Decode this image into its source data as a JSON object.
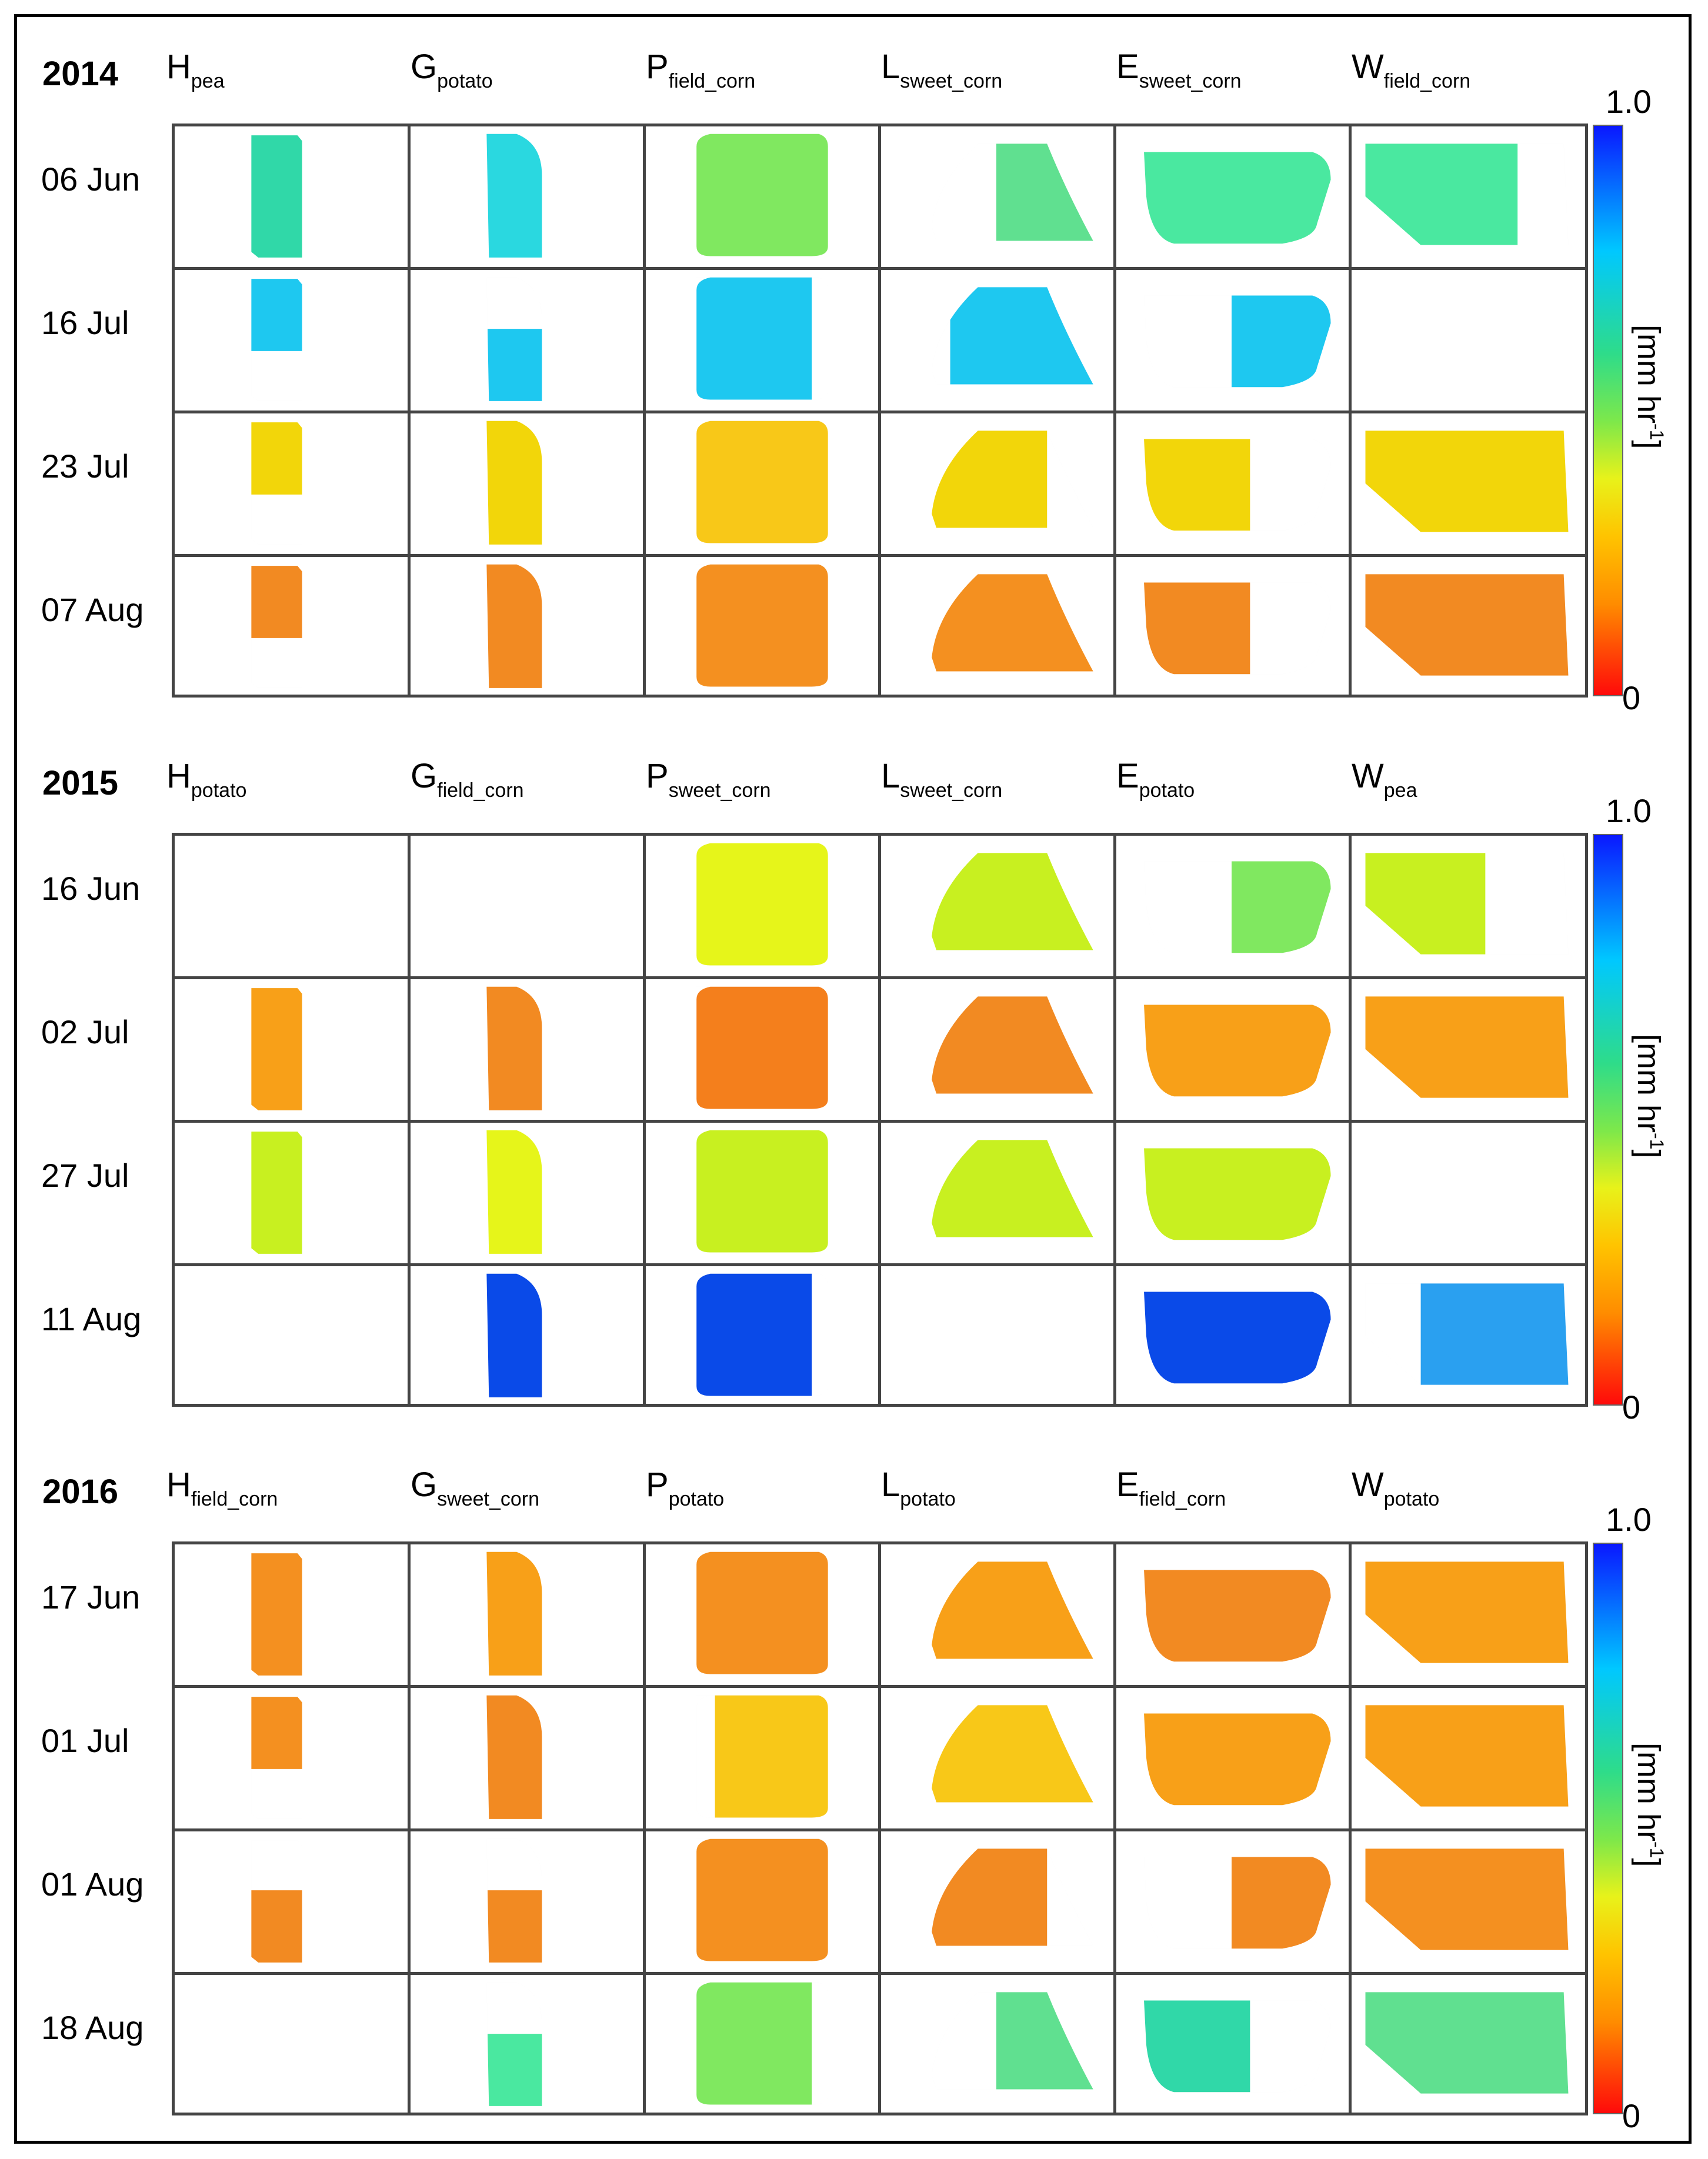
{
  "colorbar": {
    "max": "1.0",
    "min": "0",
    "label_main": "[mm hr",
    "label_sup": "-1",
    "label_end": "]"
  },
  "colors": {
    "b1": "#0a4ae8",
    "b2": "#2aa0f0",
    "c1": "#1ec8f0",
    "c2": "#2ad8e0",
    "g1": "#30d8a8",
    "g2": "#4ae8a0",
    "g3": "#60e090",
    "g4": "#80e860",
    "y1": "#c8f020",
    "y2": "#e6f51a",
    "y3": "#f2d60a",
    "o1": "#f8c818",
    "o2": "#f8a018",
    "o3": "#f49020",
    "o4": "#f28a22",
    "o5": "#f47f1c"
  },
  "panels": [
    {
      "year": "2014",
      "columns": [
        {
          "letter": "H",
          "sub": "pea"
        },
        {
          "letter": "G",
          "sub": "potato"
        },
        {
          "letter": "P",
          "sub": "field_corn"
        },
        {
          "letter": "L",
          "sub": "sweet_corn"
        },
        {
          "letter": "E",
          "sub": "sweet_corn"
        },
        {
          "letter": "W",
          "sub": "field_corn"
        }
      ],
      "rows": [
        {
          "date": "06 Jun",
          "fills": [
            {
              "c": "g1",
              "p": "full"
            },
            {
              "c": "c2",
              "p": "full"
            },
            {
              "c": "g4",
              "p": "full"
            },
            {
              "c": "g3",
              "p": "right"
            },
            {
              "c": "g2",
              "p": "full"
            },
            {
              "c": "g2",
              "p": "leftbig"
            }
          ]
        },
        {
          "date": "16 Jul",
          "fills": [
            {
              "c": "c1",
              "p": "top"
            },
            {
              "c": "c1",
              "p": "bottom"
            },
            {
              "c": "c1",
              "p": "leftbig"
            },
            {
              "c": "c1",
              "p": "rightbig"
            },
            {
              "c": "c1",
              "p": "right"
            },
            {
              "c": null,
              "p": "none"
            }
          ]
        },
        {
          "date": "23 Jul",
          "fills": [
            {
              "c": "y3",
              "p": "top"
            },
            {
              "c": "y3",
              "p": "left"
            },
            {
              "c": "o1",
              "p": "full"
            },
            {
              "c": "y3",
              "p": "leftbig"
            },
            {
              "c": "y3",
              "p": "left"
            },
            {
              "c": "y3",
              "p": "full"
            }
          ]
        },
        {
          "date": "07 Aug",
          "fills": [
            {
              "c": "o4",
              "p": "top"
            },
            {
              "c": "o4",
              "p": "full"
            },
            {
              "c": "o3",
              "p": "full"
            },
            {
              "c": "o3",
              "p": "full"
            },
            {
              "c": "o4",
              "p": "left"
            },
            {
              "c": "o4",
              "p": "full"
            }
          ]
        }
      ]
    },
    {
      "year": "2015",
      "columns": [
        {
          "letter": "H",
          "sub": "potato"
        },
        {
          "letter": "G",
          "sub": "field_corn"
        },
        {
          "letter": "P",
          "sub": "sweet_corn"
        },
        {
          "letter": "L",
          "sub": "sweet_corn"
        },
        {
          "letter": "E",
          "sub": "potato"
        },
        {
          "letter": "W",
          "sub": "pea"
        }
      ],
      "rows": [
        {
          "date": "16 Jun",
          "fills": [
            {
              "c": null,
              "p": "none"
            },
            {
              "c": null,
              "p": "none"
            },
            {
              "c": "y2",
              "p": "full"
            },
            {
              "c": "y1",
              "p": "full"
            },
            {
              "c": "g4",
              "p": "right"
            },
            {
              "c": "y1",
              "p": "left"
            }
          ]
        },
        {
          "date": "02 Jul",
          "fills": [
            {
              "c": "o2",
              "p": "full"
            },
            {
              "c": "o4",
              "p": "full"
            },
            {
              "c": "o5",
              "p": "full"
            },
            {
              "c": "o4",
              "p": "full"
            },
            {
              "c": "o2",
              "p": "full"
            },
            {
              "c": "o2",
              "p": "full"
            }
          ]
        },
        {
          "date": "27 Jul",
          "fills": [
            {
              "c": "y1",
              "p": "full"
            },
            {
              "c": "y2",
              "p": "full"
            },
            {
              "c": "y1",
              "p": "full"
            },
            {
              "c": "y1",
              "p": "full"
            },
            {
              "c": "y1",
              "p": "full"
            },
            {
              "c": null,
              "p": "none"
            }
          ]
        },
        {
          "date": "11 Aug",
          "fills": [
            {
              "c": null,
              "p": "none"
            },
            {
              "c": "b1",
              "p": "full"
            },
            {
              "c": "b1",
              "p": "leftbig"
            },
            {
              "c": null,
              "p": "none"
            },
            {
              "c": "b1",
              "p": "full"
            },
            {
              "c": "b2",
              "p": "rightbig"
            }
          ]
        }
      ]
    },
    {
      "year": "2016",
      "columns": [
        {
          "letter": "H",
          "sub": "field_corn"
        },
        {
          "letter": "G",
          "sub": "sweet_corn"
        },
        {
          "letter": "P",
          "sub": "potato"
        },
        {
          "letter": "L",
          "sub": "potato"
        },
        {
          "letter": "E",
          "sub": "field_corn"
        },
        {
          "letter": "W",
          "sub": "potato"
        }
      ],
      "rows": [
        {
          "date": "17 Jun",
          "fills": [
            {
              "c": "o3",
              "p": "full"
            },
            {
              "c": "o2",
              "p": "full"
            },
            {
              "c": "o3",
              "p": "full"
            },
            {
              "c": "o2",
              "p": "full"
            },
            {
              "c": "o4",
              "p": "full"
            },
            {
              "c": "o2",
              "p": "full"
            }
          ]
        },
        {
          "date": "01 Jul",
          "fills": [
            {
              "c": "o3",
              "p": "top"
            },
            {
              "c": "o4",
              "p": "full"
            },
            {
              "c": "o1",
              "p": "rightbig"
            },
            {
              "c": "o1",
              "p": "full"
            },
            {
              "c": "o2",
              "p": "full"
            },
            {
              "c": "o2",
              "p": "full"
            }
          ]
        },
        {
          "date": "01 Aug",
          "fills": [
            {
              "c": "o4",
              "p": "bottom"
            },
            {
              "c": "o4",
              "p": "bottom"
            },
            {
              "c": "o3",
              "p": "full"
            },
            {
              "c": "o4",
              "p": "leftbig"
            },
            {
              "c": "o4",
              "p": "right"
            },
            {
              "c": "o3",
              "p": "full"
            }
          ]
        },
        {
          "date": "18 Aug",
          "fills": [
            {
              "c": null,
              "p": "none"
            },
            {
              "c": "g2",
              "p": "bottom"
            },
            {
              "c": "g4",
              "p": "leftbig"
            },
            {
              "c": "g3",
              "p": "right"
            },
            {
              "c": "g1",
              "p": "left"
            },
            {
              "c": "g3",
              "p": "full"
            }
          ]
        }
      ]
    }
  ]
}
